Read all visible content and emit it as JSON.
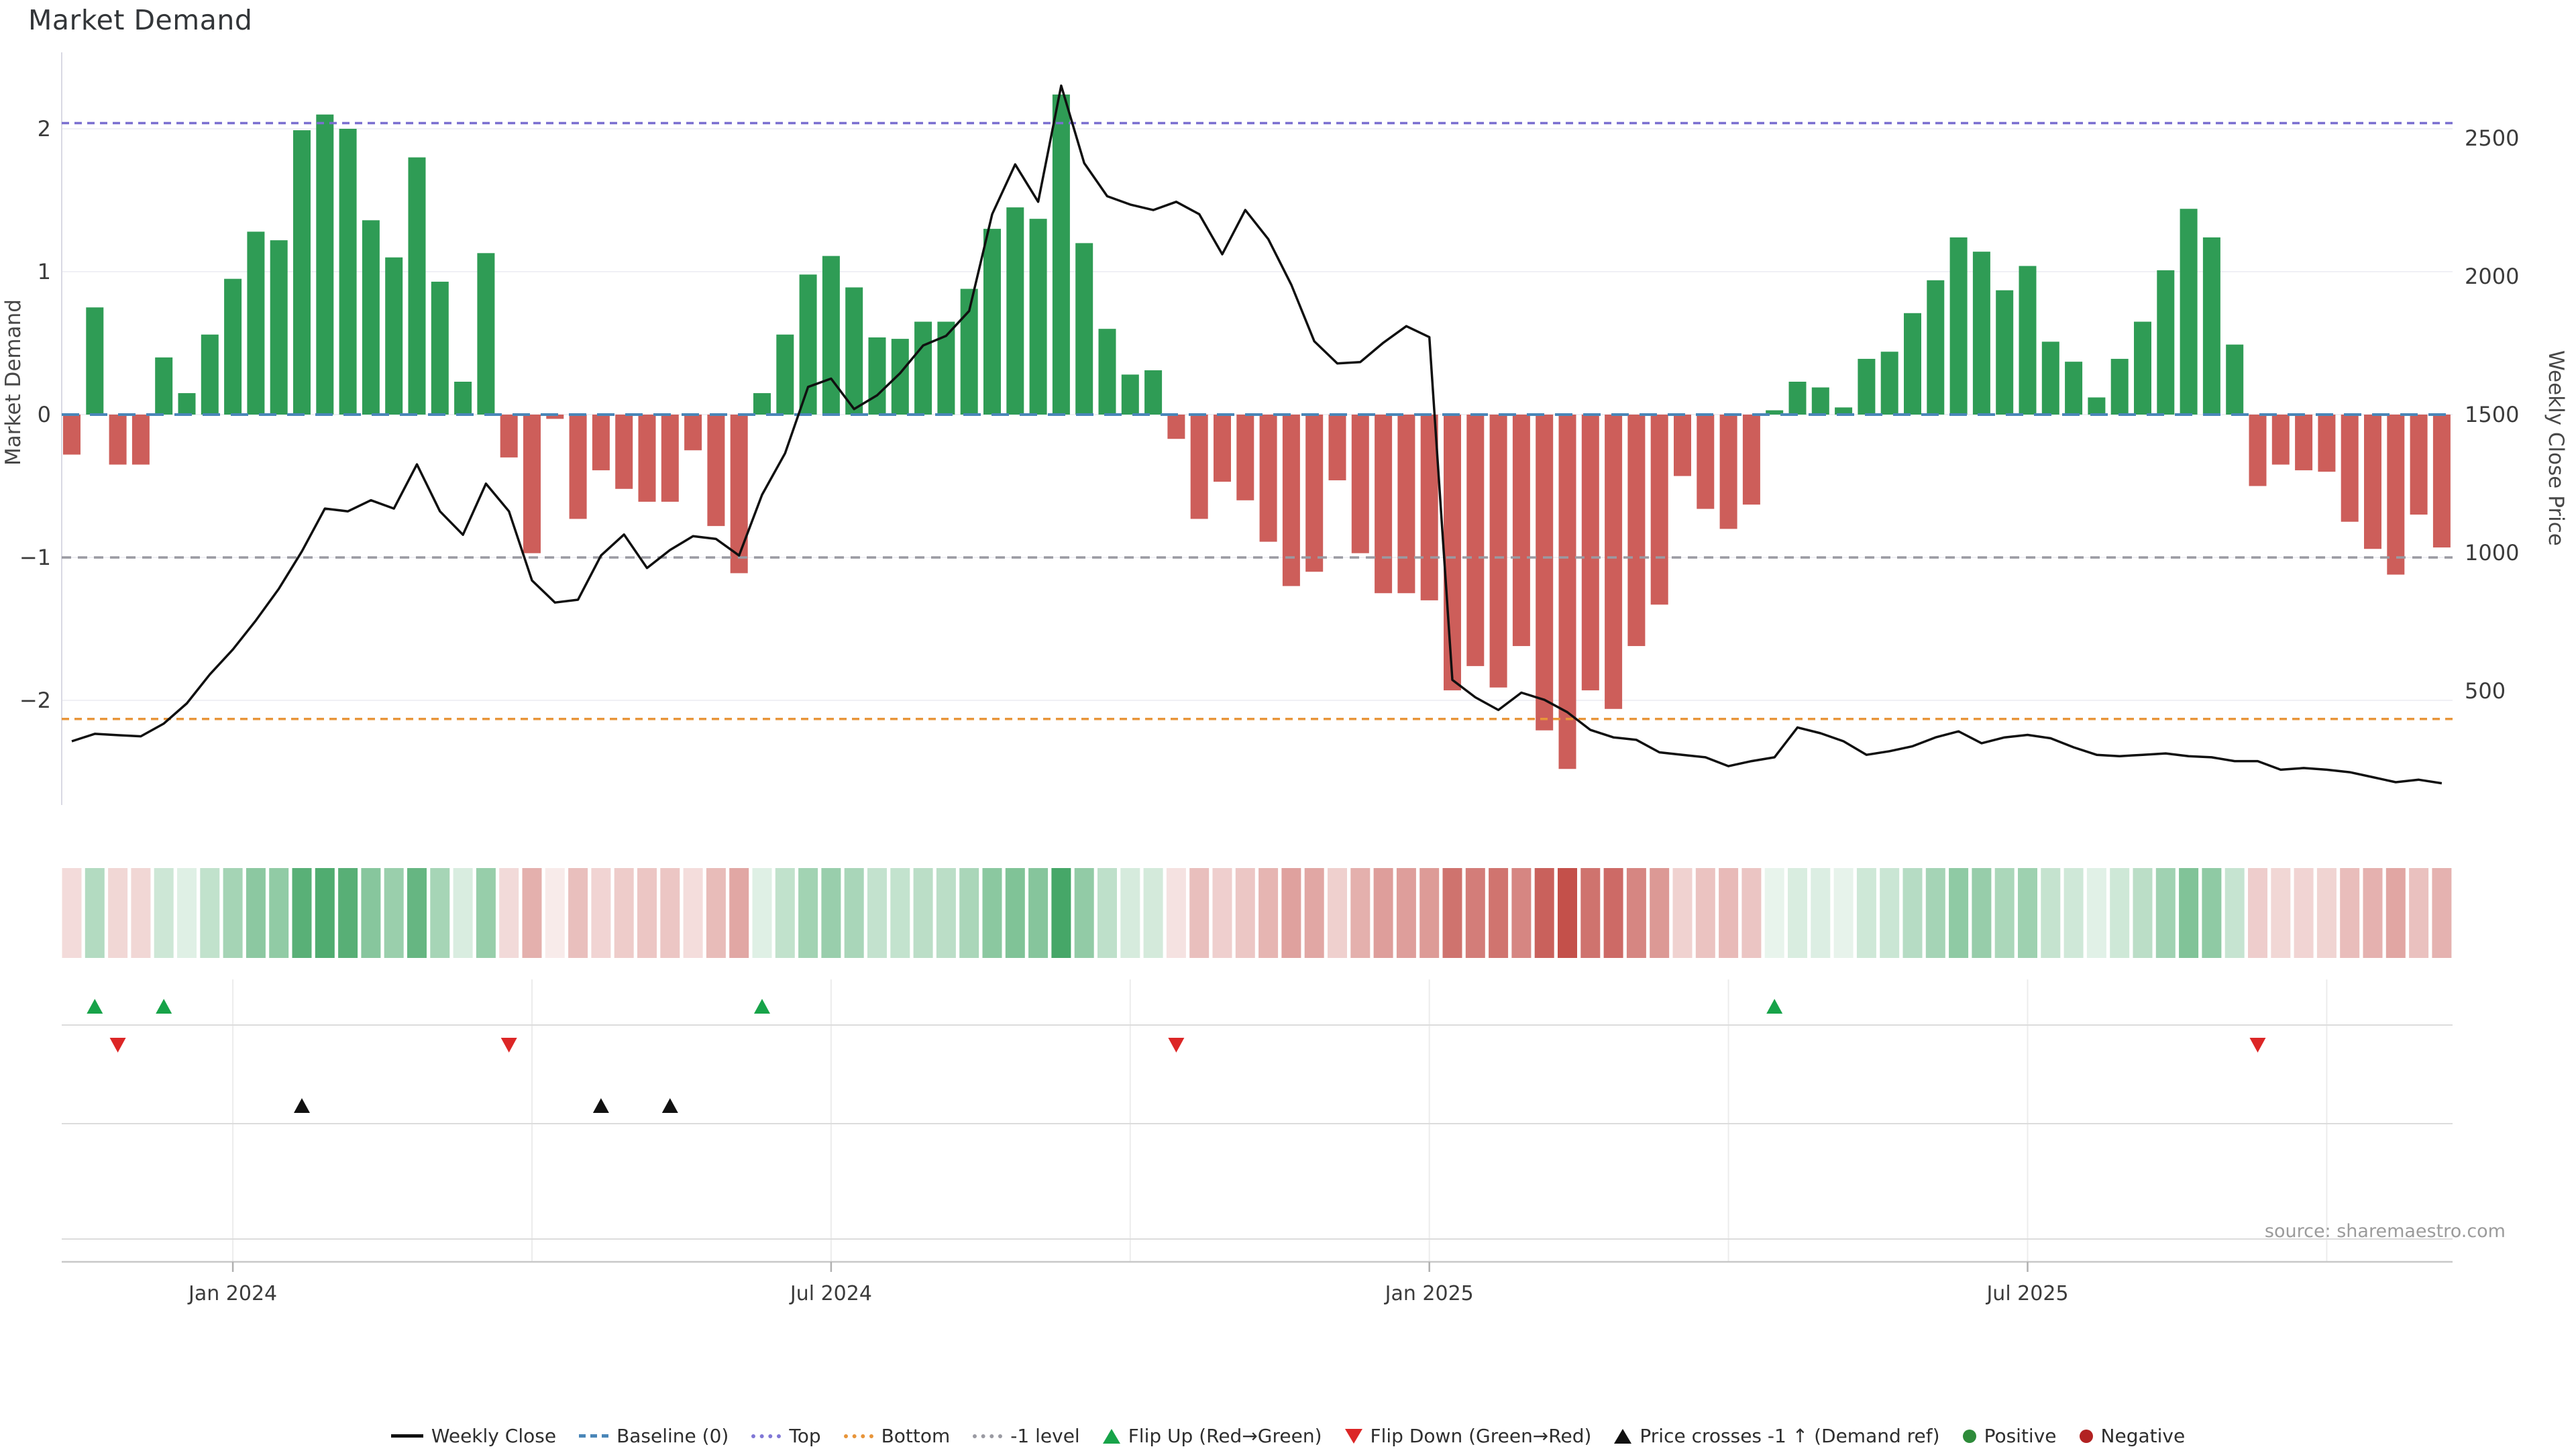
{
  "title": "Market Demand",
  "source": "source: sharemaestro.com",
  "axes": {
    "left": {
      "label": "Market Demand",
      "ticks": [
        2,
        1,
        0,
        -1,
        -2
      ]
    },
    "right": {
      "label": "Weekly Close Price",
      "ticks": [
        2500,
        2000,
        1500,
        1000,
        500
      ]
    },
    "x": {
      "tick_labels": [
        "Jan 2024",
        "Jul 2024",
        "Jan 2025",
        "Jul 2025"
      ],
      "tick_bar_index": [
        8,
        34,
        60,
        86
      ]
    }
  },
  "legend": [
    {
      "label": "Weekly Close",
      "swatch": "line",
      "color": "#111111"
    },
    {
      "label": "Baseline (0)",
      "swatch": "dashed",
      "color": "#4a86b8"
    },
    {
      "label": "Top",
      "swatch": "dotted",
      "color": "#8077d6"
    },
    {
      "label": "Bottom",
      "swatch": "dotted",
      "color": "#e8953a"
    },
    {
      "label": "-1 level",
      "swatch": "dotted",
      "color": "#9a9aa2"
    },
    {
      "label": "Flip Up (Red→Green)",
      "swatch": "tri-up",
      "color": "#17a349"
    },
    {
      "label": "Flip Down (Green→Red)",
      "swatch": "tri-down",
      "color": "#dc2626"
    },
    {
      "label": "Price crosses -1 ↑ (Demand ref)",
      "swatch": "tri-up",
      "color": "#111111"
    },
    {
      "label": "Positive",
      "swatch": "dot",
      "color": "#2e8b3a"
    },
    {
      "label": "Negative",
      "swatch": "dot",
      "color": "#b22222"
    }
  ],
  "colors": {
    "bar_positive": "#2f9c55",
    "bar_negative": "#cd5e5a",
    "heat_positive": "#2f9c55",
    "heat_negative": "#c24b45",
    "price_line": "#101010",
    "baseline": "#4a86b8",
    "top_level": "#7a6fd0",
    "bottom_level": "#e8953a",
    "minus_one_level": "#9a9aa2",
    "grid": "#f0f0f5",
    "panel_grid": "#dcdcdc",
    "axis_line": "#c8c8c8",
    "axis_text": "#3b3b3b",
    "muted_text": "#9b9b9b"
  },
  "chart_data": {
    "type": "bar+line",
    "title": "Market Demand",
    "x_unit": "weekly",
    "left_axis": {
      "label": "Market Demand",
      "ylim": [
        -2.6,
        2.5
      ],
      "ticks": [
        2,
        1,
        0,
        -1,
        -2
      ]
    },
    "right_axis": {
      "label": "Weekly Close Price",
      "ylim": [
        150,
        2750
      ],
      "ticks": [
        2500,
        2000,
        1500,
        1000,
        500
      ]
    },
    "levels": {
      "baseline": 0,
      "top": 2.04,
      "bottom": -2.13,
      "minus_one": -1
    },
    "series": [
      {
        "name": "Market Demand",
        "type": "bar",
        "axis": "left",
        "values": [
          -0.28,
          0.75,
          -0.35,
          -0.35,
          0.4,
          0.15,
          0.56,
          0.95,
          1.28,
          1.22,
          1.99,
          2.1,
          2.0,
          1.36,
          1.1,
          1.8,
          0.93,
          0.23,
          1.13,
          -0.3,
          -0.97,
          -0.03,
          -0.73,
          -0.39,
          -0.52,
          -0.61,
          -0.61,
          -0.25,
          -0.78,
          -1.11,
          0.15,
          0.56,
          0.98,
          1.11,
          0.89,
          0.54,
          0.53,
          0.65,
          0.65,
          0.88,
          1.3,
          1.45,
          1.37,
          2.24,
          1.2,
          0.6,
          0.28,
          0.31,
          -0.17,
          -0.73,
          -0.47,
          -0.6,
          -0.89,
          -1.2,
          -1.1,
          -0.46,
          -0.97,
          -1.25,
          -1.25,
          -1.3,
          -1.93,
          -1.76,
          -1.91,
          -1.62,
          -2.21,
          -2.48,
          -1.93,
          -2.06,
          -1.62,
          -1.33,
          -0.43,
          -0.66,
          -0.8,
          -0.63,
          0.03,
          0.23,
          0.19,
          0.05,
          0.39,
          0.44,
          0.71,
          0.94,
          1.24,
          1.14,
          0.87,
          1.04,
          0.51,
          0.37,
          0.12,
          0.39,
          0.65,
          1.01,
          1.44,
          1.24,
          0.49,
          -0.5,
          -0.35,
          -0.39,
          -0.4,
          -0.75,
          -0.94,
          -1.12,
          -0.7,
          -0.93
        ]
      },
      {
        "name": "Weekly Close",
        "type": "line",
        "axis": "right",
        "values": [
          318,
          345,
          340,
          336,
          382,
          455,
          560,
          650,
          755,
          870,
          1005,
          1160,
          1150,
          1190,
          1160,
          1320,
          1150,
          1065,
          1250,
          1150,
          900,
          820,
          830,
          990,
          1066,
          945,
          1010,
          1060,
          1050,
          990,
          1210,
          1360,
          1600,
          1630,
          1520,
          1570,
          1650,
          1750,
          1785,
          1875,
          2225,
          2405,
          2270,
          2690,
          2410,
          2290,
          2260,
          2240,
          2270,
          2225,
          2080,
          2240,
          2135,
          1970,
          1765,
          1685,
          1690,
          1760,
          1820,
          1780,
          540,
          477,
          431,
          494,
          468,
          423,
          359,
          332,
          323,
          278,
          269,
          260,
          228,
          246,
          260,
          368,
          347,
          318,
          269,
          282,
          300,
          332,
          354,
          311,
          332,
          341,
          329,
          296,
          269,
          264,
          269,
          274,
          264,
          260,
          246,
          246,
          215,
          221,
          215,
          206,
          188,
          170,
          179,
          166
        ]
      }
    ],
    "heatmap": {
      "note": "color intensity proportional to |Market Demand| value, green positive / red negative"
    },
    "markers": {
      "flip_up_bars": [
        2,
        5,
        31,
        75
      ],
      "flip_down_bars": [
        3,
        20,
        49,
        96
      ],
      "price_cross_bars": [
        11,
        24,
        27
      ]
    },
    "legend_position": "bottom-center",
    "grid": "horizontal-light"
  }
}
